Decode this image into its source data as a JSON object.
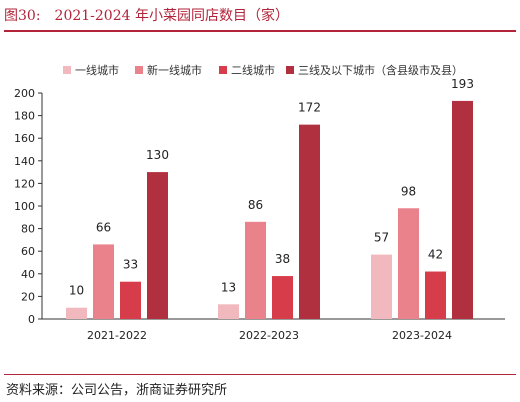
{
  "header": {
    "figure_label": "图30:",
    "title": "2021-2024 年小菜园同店数目（家）"
  },
  "source": "资料来源：公司公告，浙商证券研究所",
  "colors": {
    "accent": "#b3243a",
    "series": [
      "#f1b8bd",
      "#e9828a",
      "#d63c4a",
      "#b0303f"
    ]
  },
  "chart_data": {
    "type": "bar",
    "title": "2021-2024 年小菜园同店数目（家）",
    "categories": [
      "2021-2022",
      "2022-2023",
      "2023-2024"
    ],
    "series": [
      {
        "name": "一线城市",
        "values": [
          10,
          13,
          57
        ]
      },
      {
        "name": "新一线城市",
        "values": [
          66,
          86,
          98
        ]
      },
      {
        "name": "二线城市",
        "values": [
          33,
          38,
          42
        ]
      },
      {
        "name": "三线及以下城市（含县级市及县）",
        "values": [
          130,
          172,
          193
        ]
      }
    ],
    "ylim": [
      0,
      200
    ],
    "yticks": [
      0,
      20,
      40,
      60,
      80,
      100,
      120,
      140,
      160,
      180,
      200
    ],
    "xlabel": "",
    "ylabel": "",
    "grid": false,
    "legend_position": "top"
  }
}
